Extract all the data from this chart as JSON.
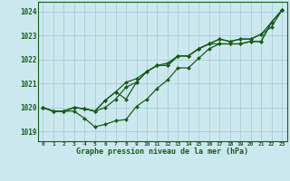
{
  "title": "Graphe pression niveau de la mer (hPa)",
  "xlabel_ticks": [
    "0",
    "1",
    "2",
    "3",
    "4",
    "5",
    "6",
    "7",
    "8",
    "9",
    "10",
    "11",
    "12",
    "13",
    "14",
    "15",
    "16",
    "17",
    "18",
    "19",
    "20",
    "21",
    "22",
    "23"
  ],
  "ylim": [
    1018.6,
    1024.4
  ],
  "xlim": [
    -0.5,
    23.5
  ],
  "yticks": [
    1019,
    1020,
    1021,
    1022,
    1023,
    1024
  ],
  "background_color": "#cce8ef",
  "grid_color": "#aacdd6",
  "line_color": "#1a5c1a",
  "title_color": "#1a5c1a",
  "line1": [
    1020.0,
    1019.85,
    1019.85,
    1019.85,
    1019.55,
    1019.2,
    1019.3,
    1019.45,
    1019.5,
    1020.05,
    1020.35,
    1020.8,
    1021.15,
    1021.65,
    1021.65,
    1022.05,
    1022.45,
    1022.65,
    1022.65,
    1022.65,
    1022.75,
    1022.75,
    1023.55,
    1024.05
  ],
  "line2": [
    1020.0,
    1019.85,
    1019.85,
    1020.0,
    1019.95,
    1019.85,
    1020.3,
    1020.65,
    1020.35,
    1021.05,
    1021.5,
    1021.75,
    1021.75,
    1022.15,
    1022.15,
    1022.45,
    1022.65,
    1022.85,
    1022.75,
    1022.85,
    1022.85,
    1023.05,
    1023.35,
    1024.05
  ],
  "line3": [
    1020.0,
    1019.85,
    1019.85,
    1020.0,
    1019.95,
    1019.85,
    1020.3,
    1020.65,
    1021.05,
    1021.2,
    1021.5,
    1021.75,
    1021.85,
    1022.15,
    1022.15,
    1022.45,
    1022.65,
    1022.85,
    1022.75,
    1022.85,
    1022.85,
    1023.05,
    1023.55,
    1024.05
  ],
  "line4": [
    1020.0,
    1019.85,
    1019.85,
    1020.0,
    1019.95,
    1019.85,
    1020.0,
    1020.35,
    1020.85,
    1021.05,
    1021.5,
    1021.75,
    1021.75,
    1022.15,
    1022.15,
    1022.45,
    1022.65,
    1022.65,
    1022.65,
    1022.65,
    1022.75,
    1022.75,
    1023.55,
    1024.05
  ]
}
